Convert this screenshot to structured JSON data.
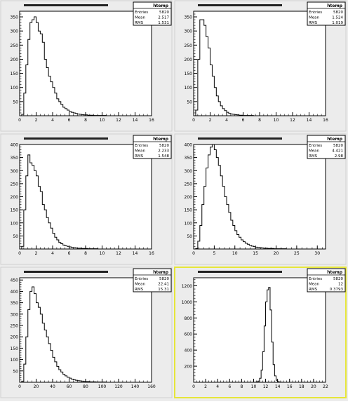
{
  "chart_data": [
    {
      "type": "bar",
      "title": "",
      "xlabel": "",
      "ylabel": "",
      "xlim": [
        0,
        16
      ],
      "ylim": [
        0,
        370
      ],
      "x_ticks": [
        0,
        2,
        4,
        6,
        8,
        10,
        12,
        14,
        16
      ],
      "y_ticks": [
        50,
        100,
        150,
        200,
        250,
        300,
        350
      ],
      "stats": {
        "name": "htemp",
        "entries_label": "Entries",
        "entries": "5820",
        "mean_label": "Mean",
        "mean": "2.517",
        "rms_label": "RMS",
        "rms": "1.531"
      },
      "bin_start": 0,
      "bin_width": 0.25,
      "values": [
        0,
        5,
        80,
        180,
        270,
        330,
        340,
        350,
        330,
        300,
        290,
        260,
        200,
        170,
        140,
        120,
        100,
        80,
        60,
        50,
        40,
        30,
        25,
        20,
        15,
        12,
        10,
        8,
        6,
        5,
        4,
        3,
        3,
        2,
        2,
        2,
        1,
        1,
        1,
        1,
        1,
        1,
        0,
        0,
        0,
        0,
        0,
        0,
        0,
        0,
        0,
        0,
        0,
        0,
        0,
        0,
        0,
        0,
        0,
        0,
        0,
        0,
        0,
        0
      ]
    },
    {
      "type": "bar",
      "title": "",
      "xlabel": "",
      "ylabel": "",
      "xlim": [
        0,
        16
      ],
      "ylim": [
        0,
        370
      ],
      "x_ticks": [
        0,
        2,
        4,
        6,
        8,
        10,
        12,
        14,
        16
      ],
      "y_ticks": [
        50,
        100,
        150,
        200,
        250,
        300,
        350
      ],
      "stats": {
        "name": "htemp",
        "entries_label": "Entries",
        "entries": "5820",
        "mean_label": "Mean",
        "mean": "1.524",
        "rms_label": "RMS",
        "rms": "1.019"
      },
      "bin_start": 0,
      "bin_width": 0.25,
      "values": [
        0,
        20,
        200,
        340,
        340,
        320,
        280,
        240,
        180,
        140,
        100,
        70,
        50,
        35,
        25,
        18,
        12,
        8,
        6,
        5,
        4,
        3,
        2,
        2,
        1,
        1,
        1,
        1,
        1,
        0,
        0,
        0,
        0,
        0,
        0,
        0,
        0,
        0,
        0,
        0,
        0,
        0,
        0,
        0,
        0,
        0,
        0,
        0,
        0,
        0,
        0,
        0,
        0,
        0,
        0,
        0,
        0,
        0,
        0,
        0,
        0,
        0,
        0,
        0
      ]
    },
    {
      "type": "bar",
      "title": "",
      "xlabel": "",
      "ylabel": "",
      "xlim": [
        0,
        16
      ],
      "ylim": [
        0,
        400
      ],
      "x_ticks": [
        0,
        2,
        4,
        6,
        8,
        10,
        12,
        14,
        16
      ],
      "y_ticks": [
        50,
        100,
        150,
        200,
        250,
        300,
        350,
        400
      ],
      "stats": {
        "name": "htemp",
        "entries_label": "Entries",
        "entries": "5820",
        "mean_label": "Mean",
        "mean": "2.233",
        "rms_label": "RMS",
        "rms": "1.548"
      },
      "bin_start": 0,
      "bin_width": 0.25,
      "values": [
        0,
        10,
        150,
        280,
        360,
        330,
        320,
        300,
        280,
        240,
        220,
        170,
        150,
        120,
        100,
        80,
        60,
        45,
        35,
        25,
        20,
        15,
        12,
        10,
        8,
        6,
        5,
        4,
        3,
        3,
        2,
        2,
        2,
        1,
        1,
        1,
        1,
        1,
        0,
        0,
        0,
        0,
        0,
        0,
        0,
        0,
        0,
        0,
        0,
        0,
        0,
        0,
        0,
        0,
        0,
        0,
        0,
        0,
        0,
        0,
        0,
        0,
        0,
        0
      ]
    },
    {
      "type": "bar",
      "title": "",
      "xlabel": "",
      "ylabel": "",
      "xlim": [
        0,
        32
      ],
      "ylim": [
        0,
        400
      ],
      "x_ticks": [
        0,
        5,
        10,
        15,
        20,
        25,
        30
      ],
      "y_ticks": [
        50,
        100,
        150,
        200,
        250,
        300,
        350,
        400
      ],
      "stats": {
        "name": "htemp",
        "entries_label": "Entries",
        "entries": "5820",
        "mean_label": "Mean",
        "mean": "4.421",
        "rms_label": "RMS",
        "rms": "2.98"
      },
      "bin_start": 0,
      "bin_width": 0.5,
      "values": [
        0,
        2,
        30,
        90,
        170,
        240,
        310,
        360,
        390,
        400,
        380,
        350,
        320,
        280,
        240,
        200,
        170,
        140,
        110,
        90,
        70,
        55,
        45,
        35,
        28,
        22,
        18,
        14,
        11,
        9,
        7,
        6,
        5,
        4,
        3,
        3,
        2,
        2,
        2,
        1,
        1,
        1,
        1,
        1,
        1,
        0,
        0,
        0,
        0,
        0,
        0,
        0,
        0,
        0,
        0,
        0,
        0,
        0,
        0,
        0,
        0,
        0,
        0,
        0
      ]
    },
    {
      "type": "bar",
      "title": "",
      "xlabel": "",
      "ylabel": "",
      "xlim": [
        0,
        160
      ],
      "ylim": [
        0,
        460
      ],
      "x_ticks": [
        0,
        20,
        40,
        60,
        80,
        100,
        120,
        140,
        160
      ],
      "y_ticks": [
        50,
        100,
        150,
        200,
        250,
        300,
        350,
        400,
        450
      ],
      "stats": {
        "name": "htemp",
        "entries_label": "Entries",
        "entries": "5820",
        "mean_label": "Mean",
        "mean": "22.41",
        "rms_label": "RMS",
        "rms": "15.31"
      },
      "bin_start": 0,
      "bin_width": 2.5,
      "values": [
        0,
        5,
        80,
        200,
        320,
        400,
        420,
        390,
        350,
        330,
        300,
        260,
        230,
        200,
        170,
        140,
        110,
        90,
        70,
        55,
        45,
        35,
        28,
        22,
        18,
        14,
        11,
        9,
        7,
        6,
        5,
        4,
        3,
        3,
        2,
        2,
        2,
        1,
        1,
        1,
        1,
        1,
        0,
        0,
        0,
        0,
        0,
        0,
        0,
        0,
        0,
        0,
        0,
        0,
        0,
        0,
        0,
        0,
        0,
        0,
        0,
        0,
        0,
        0
      ]
    },
    {
      "type": "bar",
      "title": "",
      "xlabel": "",
      "ylabel": "",
      "xlim": [
        0,
        22
      ],
      "ylim": [
        0,
        1300
      ],
      "x_ticks": [
        0,
        2,
        4,
        6,
        8,
        10,
        12,
        14,
        16,
        18,
        20,
        22
      ],
      "y_ticks": [
        200,
        400,
        600,
        800,
        1000,
        1200
      ],
      "stats": {
        "name": "htemp",
        "entries_label": "Entries",
        "entries": "5820",
        "mean_label": "Mean",
        "mean": "12",
        "rms_label": "RMS",
        "rms": "0.3793"
      },
      "bin_start": 0,
      "bin_width": 0.25,
      "values": [
        0,
        0,
        0,
        0,
        0,
        0,
        0,
        0,
        0,
        0,
        0,
        0,
        0,
        0,
        0,
        0,
        0,
        0,
        0,
        0,
        0,
        0,
        0,
        0,
        0,
        0,
        0,
        0,
        0,
        0,
        0,
        0,
        0,
        0,
        0,
        0,
        0,
        0,
        0,
        0,
        1,
        2,
        5,
        15,
        50,
        150,
        380,
        700,
        1000,
        1150,
        1180,
        900,
        500,
        220,
        80,
        25,
        8,
        3,
        1,
        0,
        0,
        0,
        0,
        0,
        0,
        0,
        0,
        0,
        0,
        0,
        0,
        0,
        0,
        0,
        0,
        0,
        0,
        0,
        0,
        0,
        0,
        0,
        0,
        0,
        0,
        0,
        0,
        0
      ]
    }
  ]
}
